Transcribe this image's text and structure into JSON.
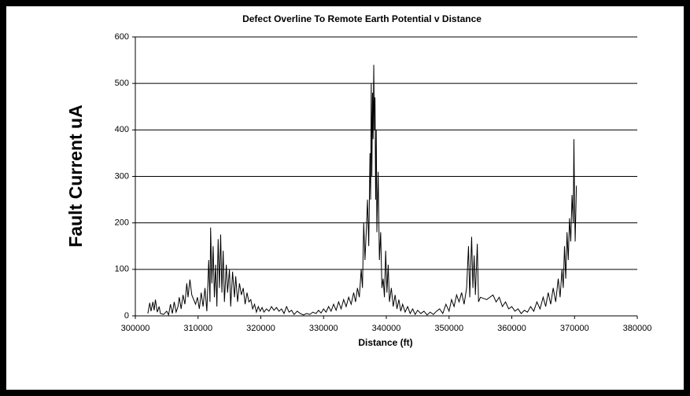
{
  "chart_data": {
    "type": "line",
    "title": "Defect Overline To Remote Earth Potential v Distance",
    "x_label": "Distance (ft)",
    "y_label": "Fault Current uA",
    "xlim": [
      300000,
      380000
    ],
    "xticks": [
      300000,
      310000,
      320000,
      330000,
      340000,
      350000,
      360000,
      370000,
      380000
    ],
    "ylim": [
      0,
      600
    ],
    "yticks": [
      0,
      100,
      200,
      300,
      400,
      500,
      600
    ],
    "grid": true,
    "series": [
      {
        "color": "#000000",
        "x": [
          302000,
          302300,
          302500,
          302800,
          303000,
          303200,
          303500,
          303800,
          304000,
          304500,
          305000,
          305300,
          305600,
          305900,
          306200,
          306500,
          306800,
          307000,
          307300,
          307600,
          307900,
          308200,
          308400,
          308700,
          309000,
          309300,
          309600,
          309900,
          310200,
          310500,
          310800,
          311100,
          311400,
          311700,
          311900,
          312000,
          312200,
          312400,
          312600,
          312800,
          313000,
          313200,
          313400,
          313600,
          313800,
          314000,
          314200,
          314500,
          314700,
          315000,
          315200,
          315500,
          315800,
          316000,
          316300,
          316600,
          316900,
          317200,
          317500,
          317800,
          318100,
          318400,
          318700,
          319000,
          319300,
          319600,
          319900,
          320200,
          320500,
          320900,
          321300,
          321700,
          322100,
          322500,
          322900,
          323300,
          323700,
          324100,
          324500,
          324900,
          325300,
          325800,
          326300,
          326800,
          327300,
          327800,
          328300,
          328800,
          329200,
          329600,
          330000,
          330400,
          330800,
          331200,
          331600,
          332000,
          332400,
          332800,
          333200,
          333600,
          334000,
          334400,
          334800,
          335100,
          335400,
          335700,
          336000,
          336200,
          336400,
          336600,
          336800,
          337000,
          337200,
          337400,
          337500,
          337600,
          337700,
          337800,
          337900,
          338000,
          338100,
          338200,
          338300,
          338400,
          338500,
          338700,
          338900,
          339100,
          339300,
          339500,
          339700,
          339900,
          340100,
          340300,
          340500,
          340800,
          341100,
          341400,
          341700,
          342000,
          342300,
          342600,
          343000,
          343400,
          343800,
          344200,
          344600,
          345000,
          345500,
          346000,
          346500,
          347000,
          347500,
          348000,
          348500,
          349000,
          349500,
          350000,
          350400,
          350800,
          351200,
          351600,
          352000,
          352400,
          352800,
          353100,
          353300,
          353600,
          353800,
          354000,
          354200,
          354500,
          354700,
          355000,
          356000,
          357000,
          357500,
          358000,
          358500,
          359000,
          359500,
          360000,
          360500,
          361000,
          361500,
          362000,
          362500,
          363000,
          363500,
          364000,
          364500,
          365000,
          365400,
          365800,
          366200,
          366600,
          367000,
          367400,
          367700,
          368000,
          368200,
          368400,
          368600,
          368800,
          369000,
          369200,
          369400,
          369600,
          369800,
          369900,
          370000,
          370100,
          370300
        ],
        "values": [
          5,
          28,
          10,
          30,
          12,
          35,
          8,
          20,
          5,
          3,
          10,
          2,
          25,
          5,
          30,
          8,
          20,
          40,
          15,
          45,
          25,
          70,
          40,
          78,
          45,
          35,
          25,
          40,
          15,
          50,
          20,
          60,
          10,
          120,
          30,
          190,
          70,
          150,
          40,
          110,
          20,
          165,
          60,
          175,
          50,
          140,
          30,
          110,
          50,
          100,
          20,
          95,
          40,
          85,
          30,
          70,
          45,
          60,
          25,
          50,
          30,
          35,
          15,
          25,
          8,
          20,
          10,
          18,
          8,
          15,
          10,
          20,
          12,
          18,
          10,
          15,
          5,
          20,
          8,
          12,
          3,
          10,
          5,
          2,
          5,
          3,
          8,
          5,
          12,
          6,
          15,
          8,
          20,
          10,
          25,
          12,
          30,
          15,
          35,
          20,
          40,
          25,
          50,
          30,
          60,
          40,
          100,
          60,
          200,
          120,
          180,
          250,
          150,
          350,
          250,
          500,
          300,
          480,
          380,
          540,
          400,
          470,
          250,
          400,
          180,
          310,
          120,
          180,
          60,
          80,
          40,
          140,
          50,
          110,
          30,
          60,
          20,
          45,
          15,
          35,
          10,
          25,
          8,
          20,
          5,
          15,
          3,
          12,
          5,
          10,
          2,
          8,
          3,
          10,
          15,
          5,
          25,
          10,
          35,
          20,
          45,
          30,
          50,
          25,
          60,
          150,
          40,
          170,
          60,
          130,
          45,
          155,
          30,
          40,
          35,
          45,
          30,
          40,
          20,
          30,
          15,
          20,
          10,
          15,
          5,
          12,
          8,
          20,
          10,
          30,
          15,
          40,
          20,
          50,
          25,
          60,
          30,
          80,
          40,
          100,
          60,
          150,
          80,
          180,
          120,
          210,
          160,
          260,
          200,
          380,
          250,
          160,
          280
        ]
      }
    ]
  }
}
